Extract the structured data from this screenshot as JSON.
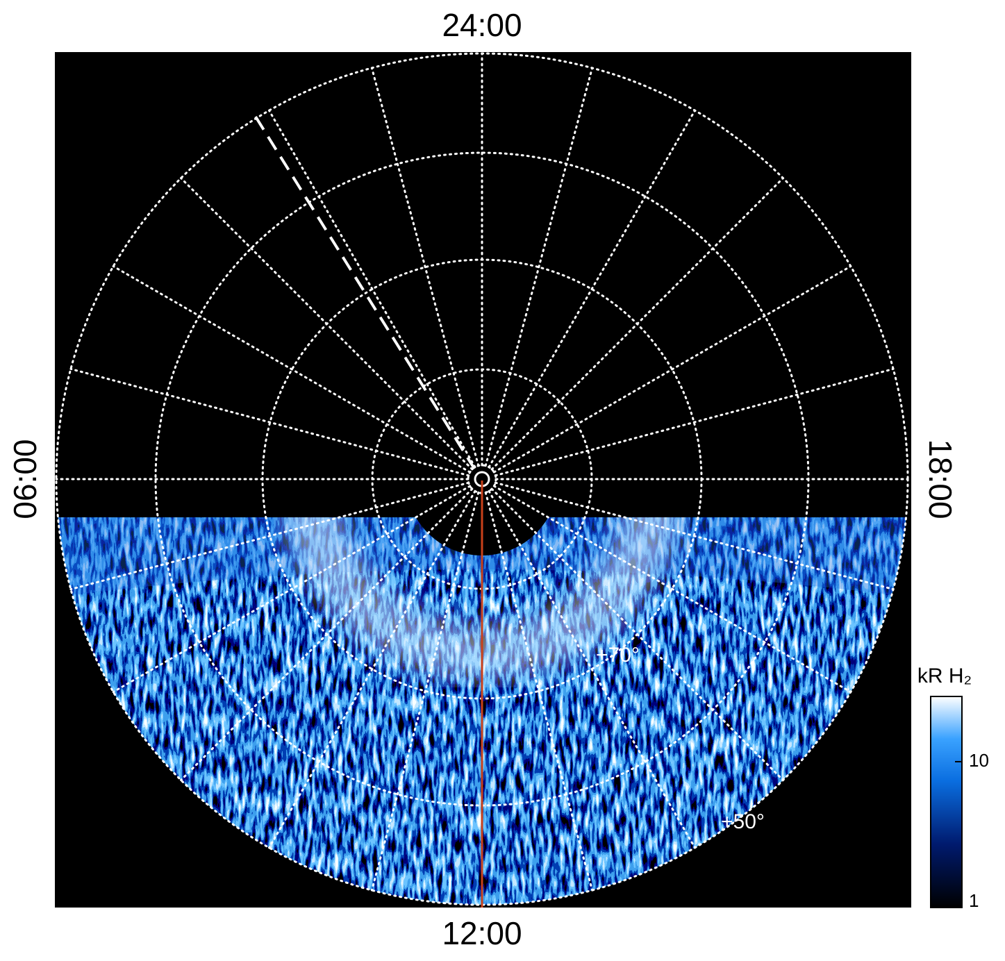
{
  "figure": {
    "time_labels": {
      "top": "24:00",
      "bottom": "12:00",
      "left": "06:00",
      "right": "18:00"
    },
    "latitude_labels": [
      "+70°",
      "+50°"
    ],
    "colorbar": {
      "title": "kR H₂",
      "scale": "log",
      "lim": [
        1,
        28
      ],
      "ticks": [
        1,
        10
      ]
    }
  }
}
